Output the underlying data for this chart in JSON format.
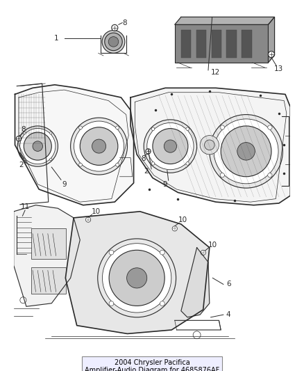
{
  "title": "2004 Chrysler Pacifica\nAmplifier-Audio Diagram for 4685876AF",
  "background_color": "#ffffff",
  "figsize": [
    4.38,
    5.33
  ],
  "dpi": 100,
  "line_color": "#2a2a2a",
  "gray_fill": "#d8d8d8",
  "light_gray": "#eeeeee",
  "label_fontsize": 7.5,
  "title_fontsize": 7
}
